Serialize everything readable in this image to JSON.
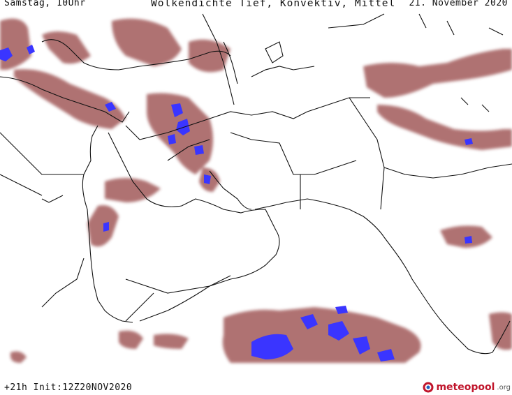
{
  "header": {
    "valid_time": "Samstag, 10Uhr",
    "title": "Wolkendichte   Tief, Konvektiv, Mittel",
    "date": "21. November 2020"
  },
  "footer": {
    "run_info": "+21h Init:12Z20NOV2020",
    "brand_name": "meteopool",
    "brand_tld": ".org"
  },
  "legend_colors": {
    "cloud_density": "#a25a5a",
    "cloud_dense": "#8f3d3d",
    "cloud_high": "#3a35ff",
    "background": "#ffffff",
    "borders": "#111111"
  }
}
